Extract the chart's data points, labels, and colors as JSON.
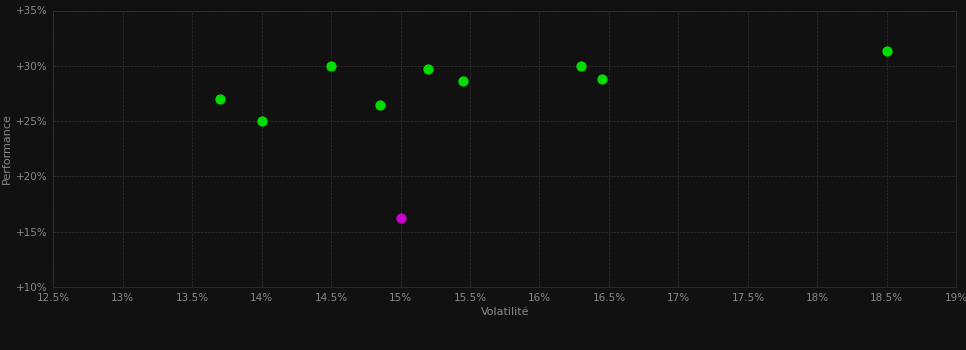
{
  "green_points": [
    [
      13.7,
      27.0
    ],
    [
      14.0,
      25.0
    ],
    [
      14.5,
      30.0
    ],
    [
      14.85,
      26.5
    ],
    [
      15.2,
      29.7
    ],
    [
      15.45,
      28.6
    ],
    [
      16.3,
      30.0
    ],
    [
      16.45,
      28.8
    ],
    [
      18.5,
      31.3
    ]
  ],
  "magenta_points": [
    [
      15.0,
      16.2
    ]
  ],
  "green_color": "#00dd00",
  "magenta_color": "#cc00cc",
  "background_color": "#111111",
  "grid_color": "#333333",
  "tick_color": "#888888",
  "label_color": "#888888",
  "xlabel": "Volatilité",
  "ylabel": "Performance",
  "xlim": [
    12.5,
    19.0
  ],
  "ylim": [
    10.0,
    35.0
  ],
  "xtick_values": [
    12.5,
    13.0,
    13.5,
    14.0,
    14.5,
    15.0,
    15.5,
    16.0,
    16.5,
    17.0,
    17.5,
    18.0,
    18.5,
    19.0
  ],
  "ytick_values": [
    10.0,
    15.0,
    20.0,
    25.0,
    30.0,
    35.0
  ],
  "marker_size": 55
}
